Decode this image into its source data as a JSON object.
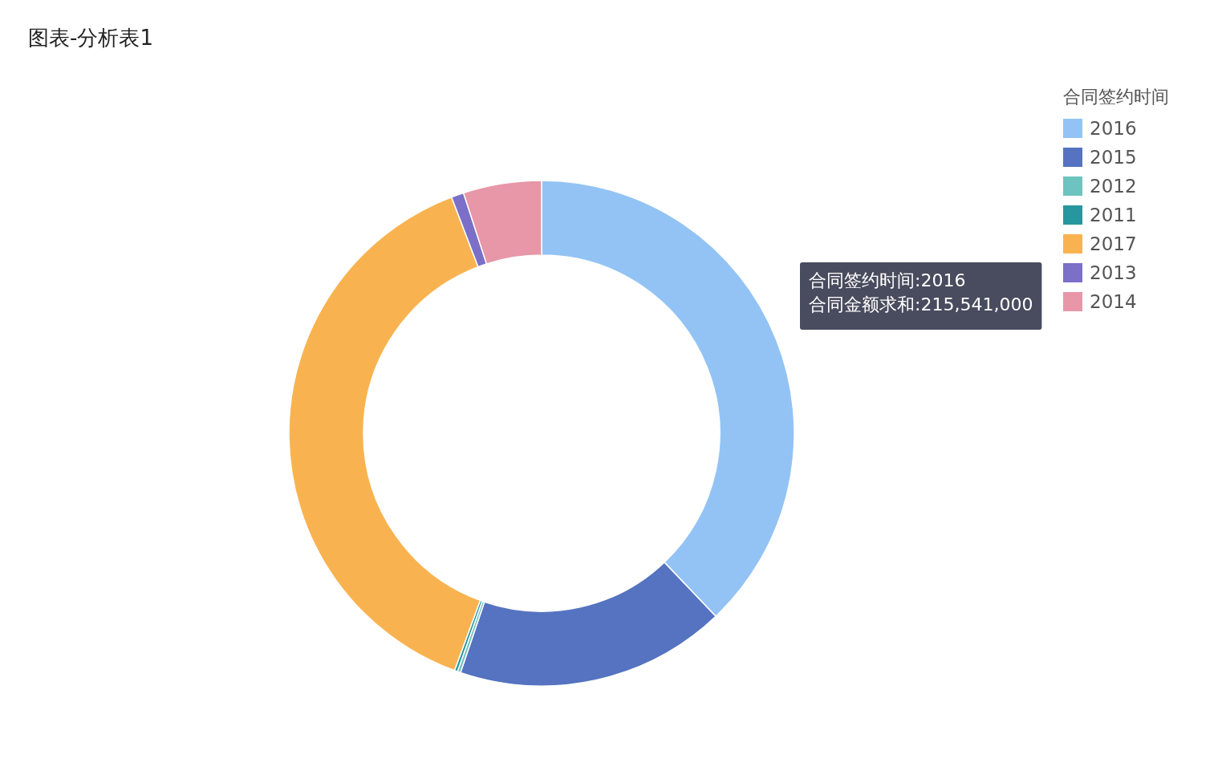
{
  "chart_data": {
    "type": "donut",
    "title": "图表-分析表1",
    "legend_title": "合同签约时间",
    "categories": [
      "2016",
      "2015",
      "2012",
      "2011",
      "2017",
      "2013",
      "2014"
    ],
    "values": [
      37.9,
      17.3,
      0.2,
      0.2,
      38.6,
      0.8,
      5.0
    ],
    "colors": [
      "#93c3f4",
      "#5573c0",
      "#6cc3bf",
      "#26979f",
      "#f8b350",
      "#7b6fc8",
      "#e797a8"
    ],
    "legend": "top right",
    "annotations": [
      "合同签约时间:2016",
      "合同金额求和:215,541,000"
    ]
  }
}
